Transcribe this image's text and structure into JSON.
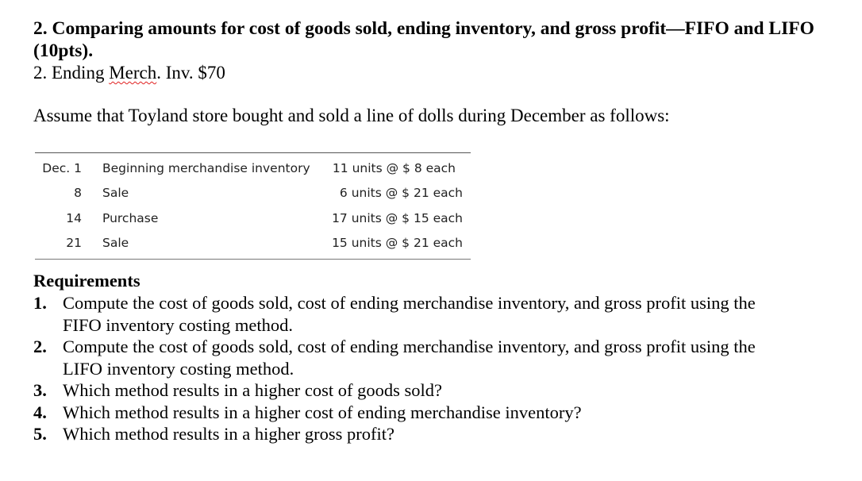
{
  "header": {
    "title_line1": "2. Comparing amounts for cost of goods sold, ending inventory, and gross profit—FIFO and LIFO",
    "title_line2": "(10pts).",
    "note_prefix": "2. Ending ",
    "note_misspelled": "Merch",
    "note_suffix": ". Inv. $70"
  },
  "intro": "Assume that Toyland store bought and sold a line of dolls during December as follows:",
  "table": {
    "rows": [
      {
        "date": "Dec. 1",
        "desc": "Beginning merchandise inventory",
        "qty": "11 units @ $ 8 each"
      },
      {
        "date": "8",
        "desc": "Sale",
        "qty": "6 units @ $ 21 each"
      },
      {
        "date": "14",
        "desc": "Purchase",
        "qty": "17 units @ $ 15 each"
      },
      {
        "date": "21",
        "desc": "Sale",
        "qty": "15 units @ $ 21 each"
      }
    ]
  },
  "requirements": {
    "heading": "Requirements",
    "items": [
      {
        "num": "1.",
        "line1": "Compute the cost of goods sold, cost of ending merchandise inventory, and gross profit using the",
        "line2": "FIFO inventory costing method."
      },
      {
        "num": "2.",
        "line1": "Compute the cost of goods sold, cost of ending merchandise inventory, and gross profit using the",
        "line2": "LIFO inventory costing method."
      },
      {
        "num": "3.",
        "line1": "Which method results in a higher cost of goods sold?"
      },
      {
        "num": "4.",
        "line1": "Which method results in a higher cost of ending merchandise inventory?"
      },
      {
        "num": "5.",
        "line1": "Which method results in a higher gross profit?"
      }
    ]
  }
}
